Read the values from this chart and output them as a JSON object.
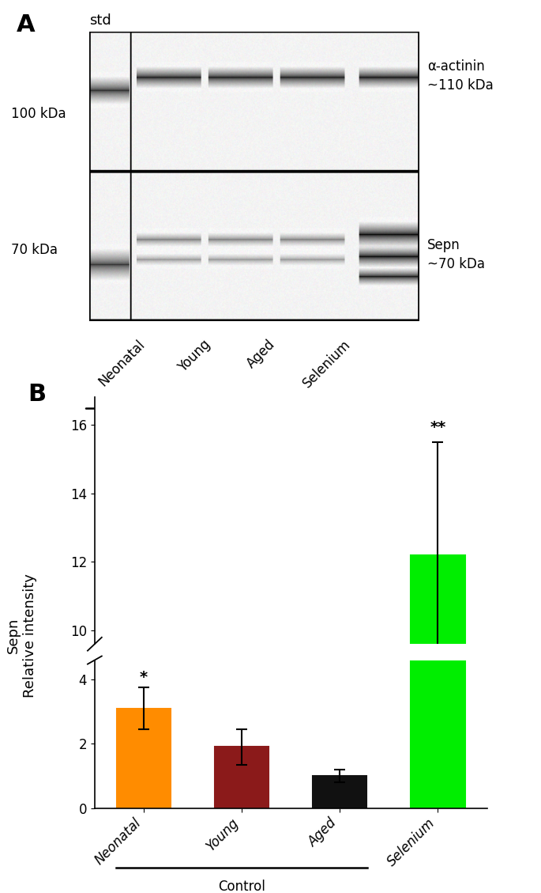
{
  "panel_A_label": "A",
  "panel_B_label": "B",
  "std_label": "std",
  "kda_labels": [
    "100 kDa",
    "70 kDa"
  ],
  "alpha_actinin_label": "α-actinin\n~110 kDa",
  "sepn_label_blot": "Sepn\n~70 kDa",
  "lane_labels": [
    "Neonatal",
    "Young",
    "Aged",
    "Selenium"
  ],
  "control_label": "Control",
  "bar_values": [
    3.1,
    1.9,
    1.0,
    12.2
  ],
  "bar_errors": [
    0.65,
    0.55,
    0.2,
    3.3
  ],
  "bar_colors": [
    "#FF8C00",
    "#8B1A1A",
    "#111111",
    "#00EE00"
  ],
  "bar_hatch": [
    "////",
    "////",
    "",
    ""
  ],
  "bar_edge_colors": [
    "#FF8C00",
    "#8B1A1A",
    "#111111",
    "#00EE00"
  ],
  "significance_labels": [
    "*",
    null,
    null,
    "**"
  ],
  "ylabel_line1": "Sepn",
  "ylabel_line2": "Relative intensity",
  "bar_width": 0.55,
  "bar_positions": [
    0,
    1,
    2,
    3
  ]
}
